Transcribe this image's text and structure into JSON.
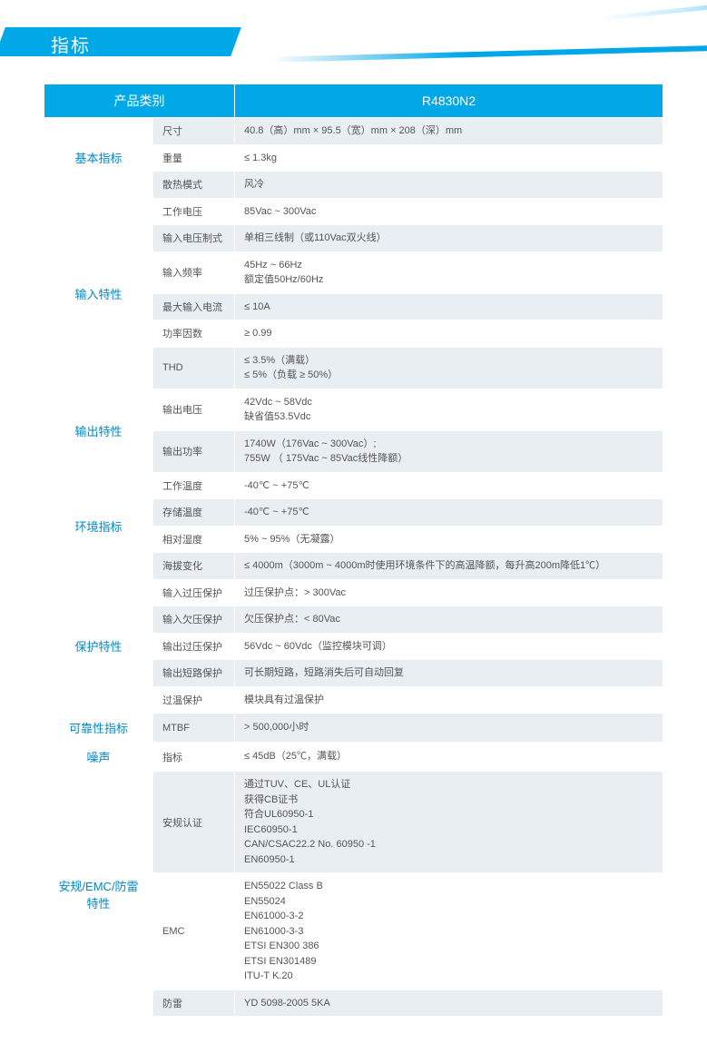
{
  "banner_title": "指标",
  "headers": {
    "category": "产品类别",
    "model": "R4830N2"
  },
  "categories": [
    {
      "name": "基本指标",
      "rows": [
        {
          "param": "尺寸",
          "value": "40.8（高）mm × 95.5（宽）mm × 208（深）mm"
        },
        {
          "param": "重量",
          "value": "≤ 1.3kg"
        },
        {
          "param": "散热模式",
          "value": "风冷"
        }
      ]
    },
    {
      "name": "输入特性",
      "rows": [
        {
          "param": "工作电压",
          "value": "85Vac ~ 300Vac"
        },
        {
          "param": "输入电压制式",
          "value": "单相三线制（或110Vac双火线）"
        },
        {
          "param": "输入频率",
          "value": "45Hz ~ 66Hz\n额定值50Hz/60Hz"
        },
        {
          "param": "最大输入电流",
          "value": "≤ 10A"
        },
        {
          "param": "功率因数",
          "value": "≥ 0.99"
        },
        {
          "param": "THD",
          "value": "≤ 3.5%（满载）\n≤ 5%（负载 ≥ 50%）"
        }
      ]
    },
    {
      "name": "输出特性",
      "rows": [
        {
          "param": "输出电压",
          "value": "42Vdc ~ 58Vdc\n缺省值53.5Vdc"
        },
        {
          "param": "输出功率",
          "value": "1740W（176Vac ~ 300Vac）;\n755W （ 175Vac  ~  85Vac线性降额）"
        }
      ]
    },
    {
      "name": "环境指标",
      "rows": [
        {
          "param": "工作温度",
          "value": "-40℃ ~ +75℃"
        },
        {
          "param": "存储温度",
          "value": "-40℃ ~ +75℃"
        },
        {
          "param": "相对湿度",
          "value": "5% ~ 95%（无凝露）"
        },
        {
          "param": "海拔变化",
          "value": "≤ 4000m（3000m  ~  4000m时使用环境条件下的高温降额，每升高200m降低1℃）"
        }
      ]
    },
    {
      "name": "保护特性",
      "rows": [
        {
          "param": "输入过压保护",
          "value": "过压保护点：> 300Vac"
        },
        {
          "param": "输入欠压保护",
          "value": "欠压保护点：< 80Vac"
        },
        {
          "param": "输出过压保护",
          "value": "56Vdc ~ 60Vdc（监控模块可调）"
        },
        {
          "param": "输出短路保护",
          "value": "可长期短路，短路消失后可自动回复"
        },
        {
          "param": "过温保护",
          "value": "模块具有过温保护"
        }
      ]
    },
    {
      "name": "可靠性指标",
      "rows": [
        {
          "param": "MTBF",
          "value": "> 500,000小时"
        }
      ]
    },
    {
      "name": "噪声",
      "rows": [
        {
          "param": "指标",
          "value": "≤ 45dB（25℃，满载）"
        }
      ]
    },
    {
      "name": "安规/EMC/防雷\n特性",
      "rows": [
        {
          "param": "安规认证",
          "value": "通过TUV、CE、UL认证\n获得CB证书\n符合UL60950-1\nIEC60950-1\nCAN/CSAC22.2 No. 60950 -1\nEN60950-1"
        },
        {
          "param": "EMC",
          "value": "EN55022 Class B\nEN55024\nEN61000-3-2\nEN61000-3-3\nETSI EN300 386\nETSI EN301489\nITU-T K.20"
        },
        {
          "param": "防雷",
          "value": "YD 5098-2005 5KA"
        }
      ]
    }
  ],
  "colors": {
    "accent": "#00a8e8",
    "cat_text": "#0288c7",
    "row_alt": "#e8eef2",
    "row_base": "#ffffff",
    "text": "#555555"
  }
}
